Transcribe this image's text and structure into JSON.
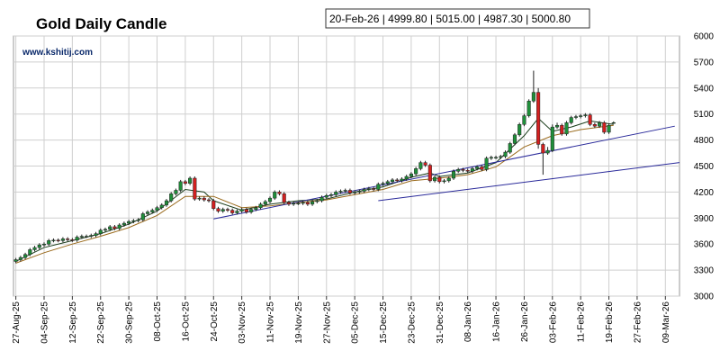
{
  "chart_data": {
    "type": "candlestick",
    "title": "Gold Daily Candle",
    "watermark": "www.kshitij.com",
    "info": "20-Feb-26 | 4999.80 | 5015.00 | 4987.30 | 5000.80",
    "up_color": "#1f8f3a",
    "down_color": "#d42020",
    "grid": true,
    "xlim": [
      -0.5,
      141
    ],
    "ylim": [
      3000,
      6000
    ],
    "yticks": [
      3000,
      3300,
      3600,
      3900,
      4200,
      4500,
      4800,
      5100,
      5400,
      5700,
      6000
    ],
    "xticks": [
      {
        "value": 0,
        "label": "27-Aug-25"
      },
      {
        "value": 6,
        "label": "04-Sep-25"
      },
      {
        "value": 12,
        "label": "12-Sep-25"
      },
      {
        "value": 18,
        "label": "22-Sep-25"
      },
      {
        "value": 24,
        "label": "30-Sep-25"
      },
      {
        "value": 30,
        "label": "08-Oct-25"
      },
      {
        "value": 36,
        "label": "16-Oct-25"
      },
      {
        "value": 42,
        "label": "24-Oct-25"
      },
      {
        "value": 48,
        "label": "03-Nov-25"
      },
      {
        "value": 54,
        "label": "11-Nov-25"
      },
      {
        "value": 60,
        "label": "19-Nov-25"
      },
      {
        "value": 66,
        "label": "27-Nov-25"
      },
      {
        "value": 72,
        "label": "05-Dec-25"
      },
      {
        "value": 78,
        "label": "15-Dec-25"
      },
      {
        "value": 84,
        "label": "23-Dec-25"
      },
      {
        "value": 90,
        "label": "31-Dec-25"
      },
      {
        "value": 96,
        "label": "08-Jan-26"
      },
      {
        "value": 102,
        "label": "16-Jan-26"
      },
      {
        "value": 108,
        "label": "26-Jan-26"
      },
      {
        "value": 114,
        "label": "03-Feb-26"
      },
      {
        "value": 120,
        "label": "11-Feb-26"
      },
      {
        "value": 126,
        "label": "19-Feb-26"
      },
      {
        "value": 132,
        "label": "27-Feb-26"
      },
      {
        "value": 138,
        "label": "09-Mar-26"
      }
    ],
    "open": [
      3400,
      3420,
      3445,
      3480,
      3535,
      3560,
      3590,
      3600,
      3640,
      3645,
      3640,
      3660,
      3650,
      3645,
      3680,
      3690,
      3690,
      3700,
      3720,
      3760,
      3770,
      3800,
      3780,
      3820,
      3840,
      3860,
      3870,
      3880,
      3950,
      3970,
      3990,
      4020,
      4050,
      4100,
      4180,
      4220,
      4320,
      4300,
      4360,
      4120,
      4130,
      4110,
      4100,
      4010,
      3980,
      4000,
      3990,
      3960,
      3980,
      4000,
      3970,
      4000,
      4020,
      4060,
      4090,
      4130,
      4200,
      4180,
      4080,
      4060,
      4070,
      4070,
      4080,
      4060,
      4090,
      4100,
      4140,
      4160,
      4170,
      4200,
      4210,
      4220,
      4190,
      4200,
      4210,
      4230,
      4240,
      4230,
      4290,
      4300,
      4320,
      4340,
      4330,
      4350,
      4380,
      4410,
      4470,
      4540,
      4510,
      4330,
      4370,
      4320,
      4330,
      4360,
      4440,
      4460,
      4450,
      4440,
      4470,
      4490,
      4460,
      4590,
      4600,
      4600,
      4610,
      4660,
      4760,
      4860,
      4980,
      5080,
      5250,
      5350,
      4750,
      4650,
      4680,
      4950,
      4970,
      4870,
      5000,
      5060,
      5070,
      5080,
      5090,
      4980,
      4960,
      5000,
      4890,
      4999.8
    ],
    "high": [
      3440,
      3465,
      3500,
      3555,
      3580,
      3610,
      3620,
      3660,
      3665,
      3665,
      3680,
      3680,
      3670,
      3700,
      3710,
      3710,
      3720,
      3740,
      3780,
      3790,
      3820,
      3820,
      3840,
      3860,
      3880,
      3890,
      3900,
      3970,
      3990,
      4010,
      4040,
      4070,
      4120,
      4200,
      4240,
      4340,
      4340,
      4380,
      4380,
      4150,
      4150,
      4130,
      4120,
      4030,
      4020,
      4020,
      4010,
      4000,
      4020,
      4020,
      4020,
      4040,
      4080,
      4110,
      4150,
      4220,
      4220,
      4200,
      4100,
      4090,
      4090,
      4100,
      4100,
      4110,
      4120,
      4160,
      4180,
      4190,
      4220,
      4230,
      4240,
      4240,
      4220,
      4230,
      4250,
      4260,
      4260,
      4310,
      4320,
      4340,
      4360,
      4360,
      4370,
      4400,
      4430,
      4490,
      4560,
      4560,
      4530,
      4390,
      4390,
      4350,
      4380,
      4460,
      4480,
      4480,
      4470,
      4490,
      4510,
      4510,
      4610,
      4620,
      4620,
      4630,
      4680,
      4780,
      4880,
      5000,
      5100,
      5270,
      5600,
      5400,
      4770,
      4720,
      4980,
      5000,
      4990,
      5020,
      5080,
      5090,
      5100,
      5110,
      5110,
      5000,
      5020,
      5020,
      4990,
      5015
    ],
    "low": [
      3380,
      3400,
      3425,
      3460,
      3515,
      3540,
      3570,
      3580,
      3620,
      3620,
      3620,
      3630,
      3625,
      3625,
      3660,
      3670,
      3670,
      3680,
      3700,
      3740,
      3750,
      3760,
      3760,
      3800,
      3820,
      3840,
      3850,
      3860,
      3930,
      3950,
      3970,
      4000,
      4030,
      4080,
      4160,
      4200,
      4280,
      4280,
      4100,
      4100,
      4090,
      4080,
      3990,
      3960,
      3960,
      3970,
      3940,
      3940,
      3960,
      3950,
      3950,
      3980,
      4000,
      4040,
      4070,
      4110,
      4160,
      4060,
      4040,
      4040,
      4050,
      4050,
      4040,
      4040,
      4070,
      4080,
      4120,
      4140,
      4150,
      4180,
      4190,
      4170,
      4170,
      4180,
      4190,
      4210,
      4210,
      4210,
      4270,
      4280,
      4300,
      4310,
      4310,
      4330,
      4360,
      4390,
      4450,
      4490,
      4310,
      4310,
      4300,
      4300,
      4310,
      4340,
      4420,
      4430,
      4420,
      4420,
      4450,
      4440,
      4440,
      4570,
      4580,
      4580,
      4590,
      4640,
      4740,
      4840,
      4960,
      5060,
      5230,
      4700,
      4400,
      4630,
      4660,
      4930,
      4850,
      4850,
      4980,
      5040,
      5050,
      5060,
      4960,
      4940,
      4940,
      4870,
      4870,
      4987.3
    ],
    "close": [
      3420,
      3445,
      3480,
      3535,
      3560,
      3590,
      3600,
      3640,
      3645,
      3640,
      3660,
      3650,
      3645,
      3680,
      3690,
      3690,
      3700,
      3720,
      3760,
      3770,
      3800,
      3780,
      3820,
      3840,
      3860,
      3870,
      3880,
      3950,
      3970,
      3990,
      4020,
      4050,
      4100,
      4180,
      4220,
      4320,
      4300,
      4360,
      4120,
      4130,
      4110,
      4100,
      4010,
      3980,
      4000,
      3990,
      3960,
      3980,
      4000,
      3970,
      4000,
      4020,
      4060,
      4090,
      4130,
      4200,
      4180,
      4080,
      4060,
      4070,
      4070,
      4080,
      4060,
      4090,
      4100,
      4140,
      4160,
      4170,
      4200,
      4210,
      4220,
      4190,
      4200,
      4210,
      4230,
      4240,
      4230,
      4290,
      4300,
      4320,
      4340,
      4330,
      4350,
      4380,
      4410,
      4470,
      4540,
      4510,
      4330,
      4370,
      4320,
      4330,
      4360,
      4440,
      4460,
      4450,
      4440,
      4470,
      4490,
      4460,
      4590,
      4600,
      4600,
      4610,
      4660,
      4760,
      4860,
      4980,
      5080,
      5250,
      5350,
      4750,
      4650,
      4680,
      4950,
      4970,
      4870,
      5000,
      5060,
      5070,
      5080,
      5090,
      4980,
      4960,
      5000,
      4890,
      4970,
      5000.8
    ],
    "lines": [
      {
        "color": "#1b3d1b",
        "x": [
          0,
          6,
          12,
          18,
          24,
          30,
          36,
          40,
          42,
          48,
          54,
          60,
          66,
          72,
          78,
          84,
          88,
          90,
          96,
          102,
          108,
          111,
          114,
          118,
          122,
          127
        ],
        "values": [
          3400,
          3560,
          3640,
          3720,
          3830,
          3980,
          4230,
          4200,
          4100,
          3990,
          4060,
          4100,
          4120,
          4200,
          4260,
          4370,
          4420,
          4380,
          4420,
          4540,
          4850,
          5050,
          4900,
          4950,
          5020,
          4980
        ]
      },
      {
        "color": "#9a6a1c",
        "x": [
          0,
          6,
          12,
          18,
          24,
          30,
          36,
          42,
          48,
          54,
          60,
          66,
          72,
          78,
          84,
          90,
          96,
          102,
          108,
          114,
          120,
          127
        ],
        "values": [
          3380,
          3500,
          3600,
          3690,
          3790,
          3930,
          4150,
          4150,
          4020,
          4040,
          4080,
          4110,
          4170,
          4230,
          4330,
          4360,
          4400,
          4490,
          4720,
          4850,
          4920,
          4970
        ]
      },
      {
        "color": "#2a2a9a",
        "x": [
          42,
          140
        ],
        "values": [
          3890,
          4960
        ]
      },
      {
        "color": "#2a2a9a",
        "x": [
          77,
          141
        ],
        "values": [
          4100,
          4540
        ]
      }
    ]
  }
}
